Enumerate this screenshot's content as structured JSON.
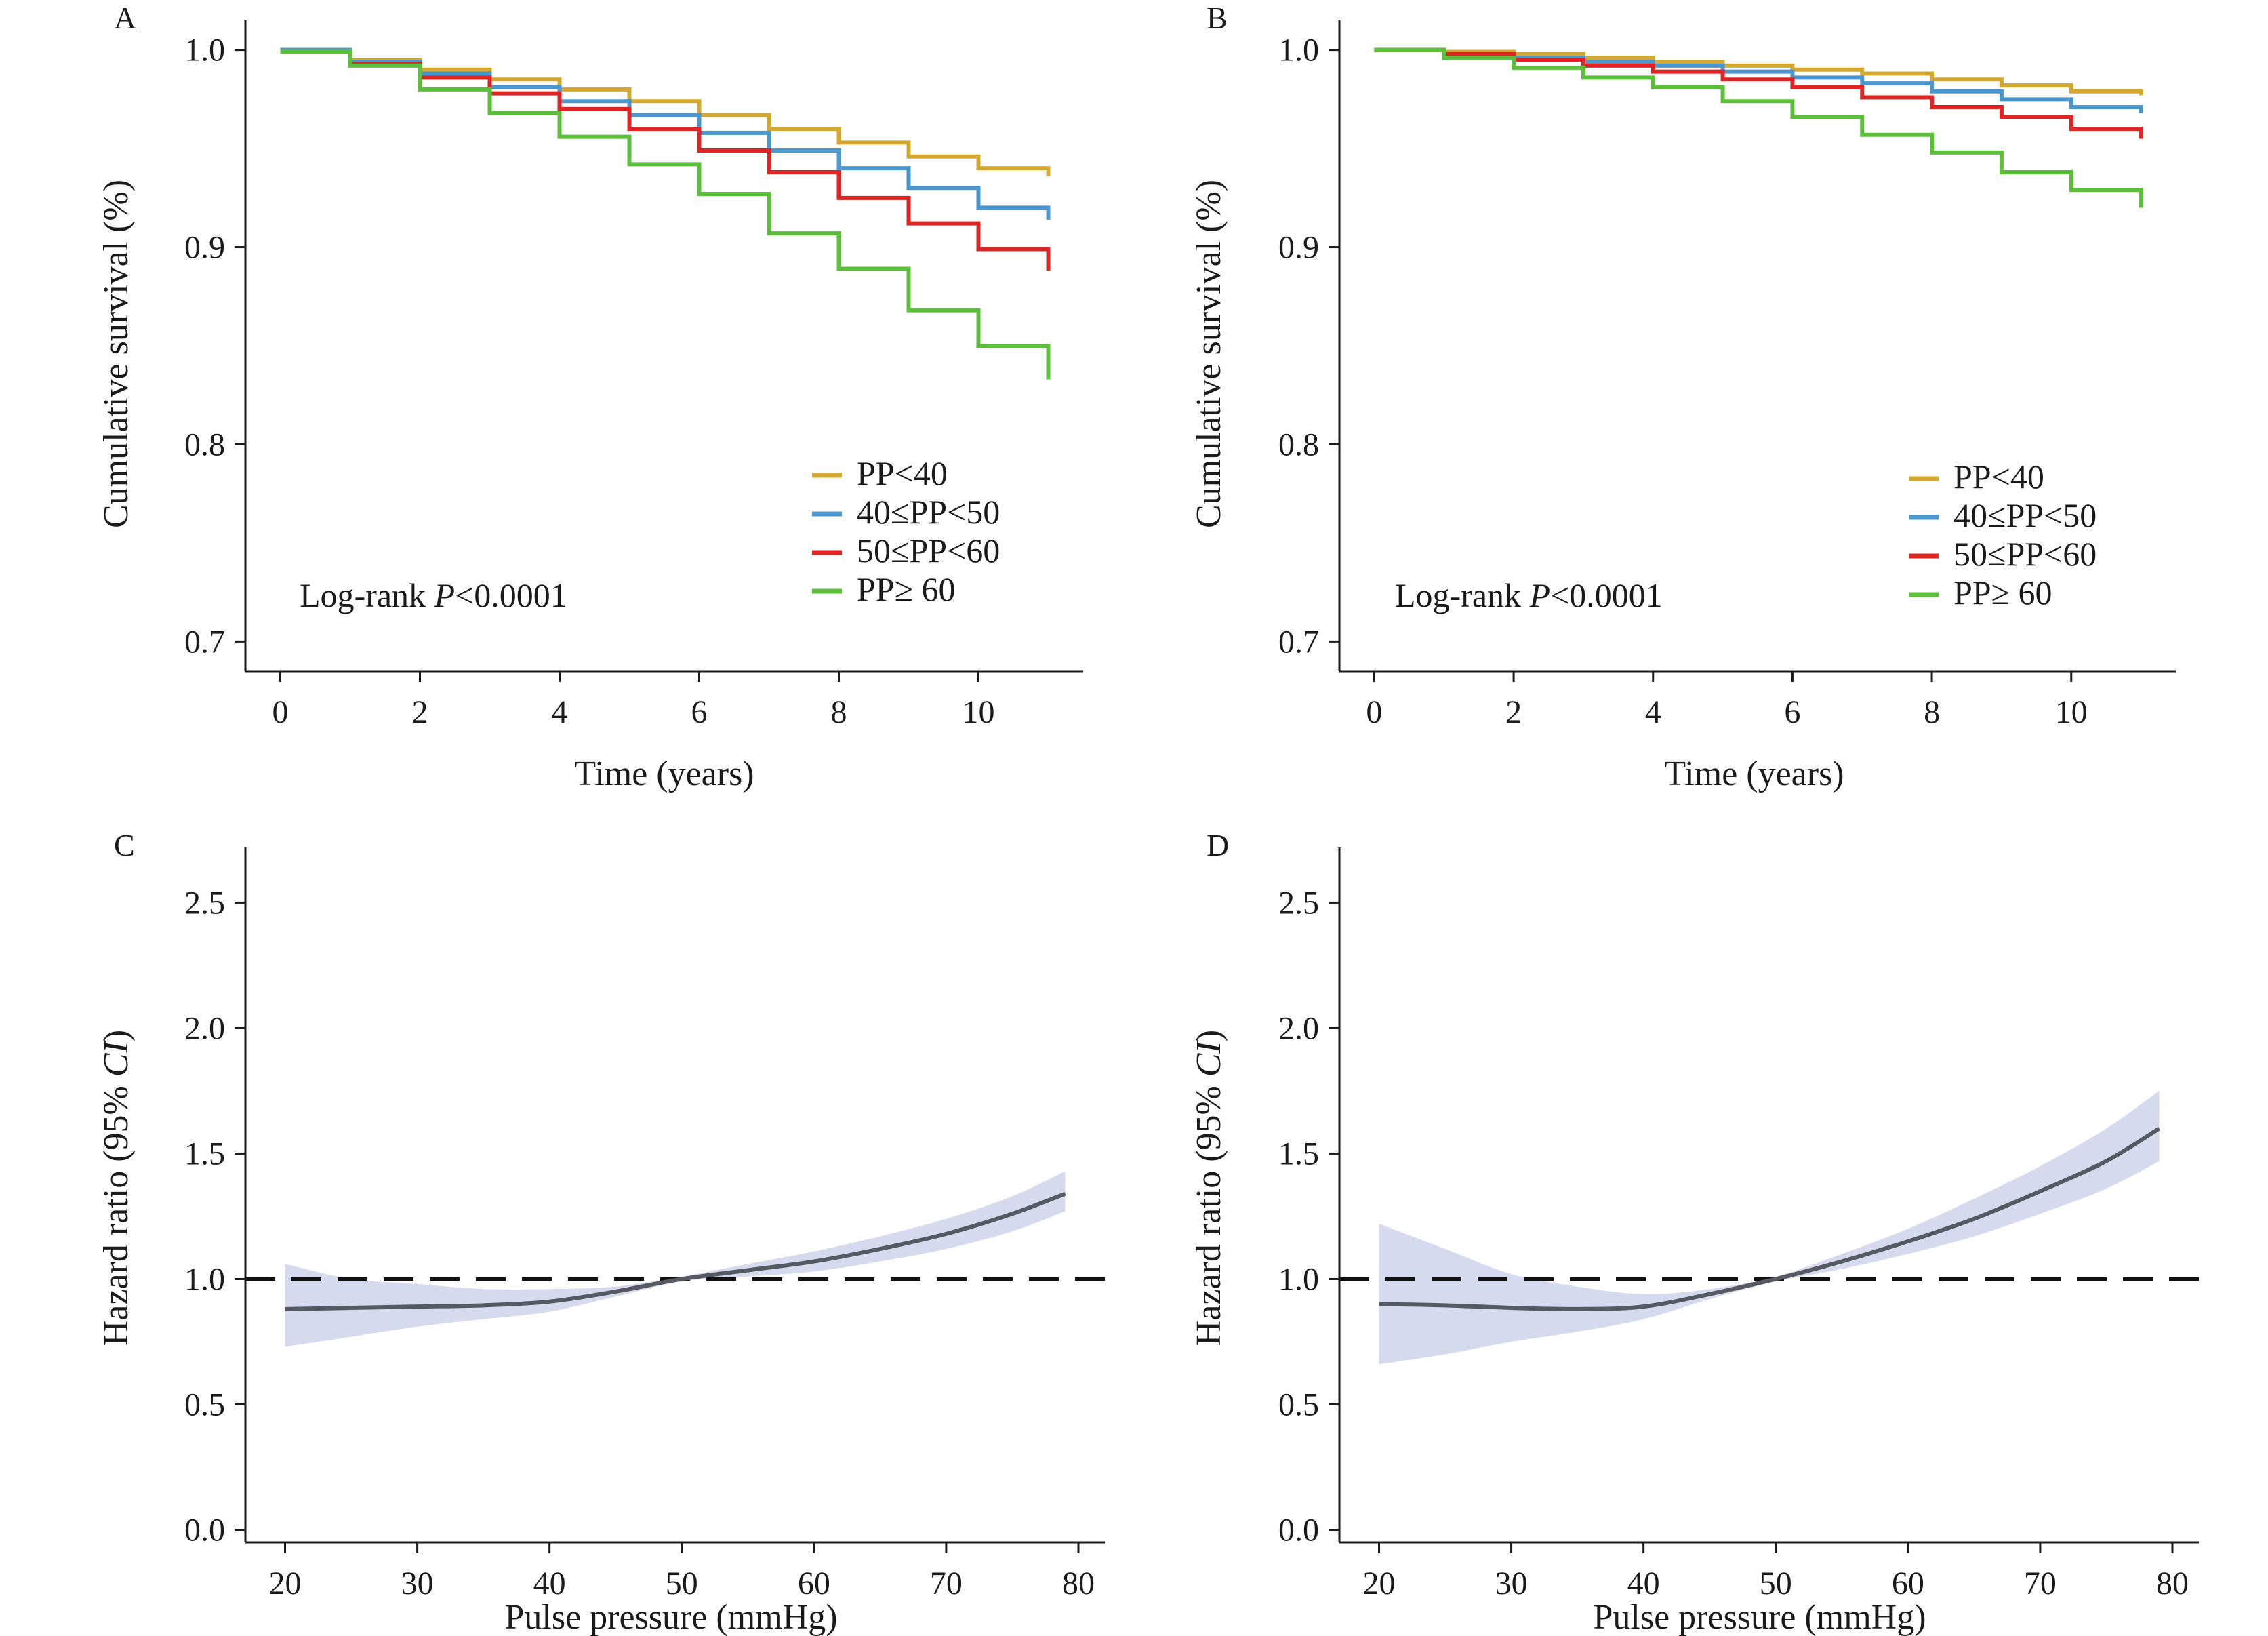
{
  "colors": {
    "pp_lt40": "#D4A82E",
    "pp_40_50": "#4A96CF",
    "pp_50_60": "#E02424",
    "pp_ge60": "#5CBF3A",
    "spline": "#555962",
    "ci_band": "#D5DAEE",
    "reference": "#111111",
    "axis": "#1a1a1a"
  },
  "chart_data": [
    {
      "panel": "A",
      "type": "line",
      "step": true,
      "xlabel": "Time (years)",
      "ylabel": "Cumulative survival (%)",
      "xlim": [
        -0.5,
        11.5
      ],
      "ylim": [
        0.685,
        1.015
      ],
      "xticks": [
        0,
        2,
        4,
        6,
        8,
        10
      ],
      "yticks": [
        0.7,
        0.8,
        0.9,
        1.0
      ],
      "ytick_labels": [
        "0.7",
        "0.8",
        "0.9",
        "1.0"
      ],
      "annotation": {
        "prefix": "Log-rank ",
        "italic": "P",
        "suffix": "<0.0001"
      },
      "legend_position": "bottom-right",
      "series": [
        {
          "name": "PP<40",
          "color_key": "pp_lt40",
          "x": [
            0,
            1,
            2,
            3,
            4,
            5,
            6,
            7,
            8,
            9,
            10,
            11
          ],
          "y": [
            1.0,
            0.995,
            0.99,
            0.985,
            0.98,
            0.974,
            0.967,
            0.96,
            0.953,
            0.946,
            0.94,
            0.936
          ]
        },
        {
          "name": "40≤PP<50",
          "color_key": "pp_40_50",
          "x": [
            0,
            1,
            2,
            3,
            4,
            5,
            6,
            7,
            8,
            9,
            10,
            11
          ],
          "y": [
            1.0,
            0.994,
            0.988,
            0.981,
            0.974,
            0.967,
            0.958,
            0.949,
            0.94,
            0.93,
            0.92,
            0.914
          ]
        },
        {
          "name": "50≤PP<60",
          "color_key": "pp_50_60",
          "x": [
            0,
            1,
            2,
            3,
            4,
            5,
            6,
            7,
            8,
            9,
            10,
            11
          ],
          "y": [
            0.999,
            0.993,
            0.986,
            0.978,
            0.97,
            0.96,
            0.949,
            0.938,
            0.925,
            0.912,
            0.899,
            0.888
          ]
        },
        {
          "name": "PP≥ 60",
          "color_key": "pp_ge60",
          "x": [
            0,
            1,
            2,
            3,
            4,
            5,
            6,
            7,
            8,
            9,
            10,
            11
          ],
          "y": [
            0.999,
            0.992,
            0.98,
            0.968,
            0.956,
            0.942,
            0.927,
            0.907,
            0.889,
            0.868,
            0.85,
            0.833
          ]
        }
      ]
    },
    {
      "panel": "B",
      "type": "line",
      "step": true,
      "xlabel": "Time (years)",
      "ylabel": "Cumulative survival (%)",
      "xlim": [
        -0.5,
        11.5
      ],
      "ylim": [
        0.685,
        1.015
      ],
      "xticks": [
        0,
        2,
        4,
        6,
        8,
        10
      ],
      "yticks": [
        0.7,
        0.8,
        0.9,
        1.0
      ],
      "ytick_labels": [
        "0.7",
        "0.8",
        "0.9",
        "1.0"
      ],
      "annotation": {
        "prefix": "Log-rank ",
        "italic": "P",
        "suffix": "<0.0001"
      },
      "legend_position": "bottom-right",
      "series": [
        {
          "name": "PP<40",
          "color_key": "pp_lt40",
          "x": [
            0,
            1,
            2,
            3,
            4,
            5,
            6,
            7,
            8,
            9,
            10,
            11
          ],
          "y": [
            1.0,
            0.999,
            0.998,
            0.996,
            0.994,
            0.992,
            0.99,
            0.988,
            0.985,
            0.982,
            0.979,
            0.977
          ]
        },
        {
          "name": "40≤PP<50",
          "color_key": "pp_40_50",
          "x": [
            0,
            1,
            2,
            3,
            4,
            5,
            6,
            7,
            8,
            9,
            10,
            11
          ],
          "y": [
            1.0,
            0.998,
            0.996,
            0.994,
            0.992,
            0.989,
            0.986,
            0.983,
            0.979,
            0.975,
            0.971,
            0.968
          ]
        },
        {
          "name": "50≤PP<60",
          "color_key": "pp_50_60",
          "x": [
            0,
            1,
            2,
            3,
            4,
            5,
            6,
            7,
            8,
            9,
            10,
            11
          ],
          "y": [
            1.0,
            0.998,
            0.995,
            0.992,
            0.989,
            0.985,
            0.981,
            0.976,
            0.971,
            0.966,
            0.96,
            0.955
          ]
        },
        {
          "name": "PP≥ 60",
          "color_key": "pp_ge60",
          "x": [
            0,
            1,
            2,
            3,
            4,
            5,
            6,
            7,
            8,
            9,
            10,
            11
          ],
          "y": [
            1.0,
            0.996,
            0.991,
            0.986,
            0.981,
            0.974,
            0.966,
            0.957,
            0.948,
            0.938,
            0.929,
            0.92
          ]
        }
      ]
    },
    {
      "panel": "C",
      "type": "area",
      "xlabel": "Pulse pressure (mmHg)",
      "ylabel": {
        "prefix": "Hazard ratio (95% ",
        "italic": "CI",
        "suffix": ")"
      },
      "xlim": [
        17,
        82
      ],
      "ylim": [
        -0.05,
        2.72
      ],
      "xticks": [
        20,
        30,
        40,
        50,
        60,
        70,
        80
      ],
      "yticks": [
        0.0,
        0.5,
        1.0,
        1.5,
        2.0,
        2.5
      ],
      "ytick_labels": [
        "0.0",
        "0.5",
        "1.0",
        "1.5",
        "2.0",
        "2.5"
      ],
      "reference_line": 1.0,
      "x": [
        20,
        25,
        30,
        35,
        40,
        45,
        50,
        55,
        60,
        65,
        70,
        75,
        79
      ],
      "hr": [
        0.88,
        0.885,
        0.89,
        0.895,
        0.91,
        0.95,
        1.0,
        1.035,
        1.07,
        1.12,
        1.18,
        1.26,
        1.34
      ],
      "ci_lower": [
        0.73,
        0.77,
        0.81,
        0.84,
        0.87,
        0.93,
        0.99,
        1.01,
        1.03,
        1.07,
        1.12,
        1.19,
        1.27
      ],
      "ci_upper": [
        1.06,
        1.0,
        0.98,
        0.96,
        0.96,
        0.97,
        1.01,
        1.06,
        1.11,
        1.17,
        1.24,
        1.33,
        1.43
      ]
    },
    {
      "panel": "D",
      "type": "area",
      "xlabel": "Pulse pressure (mmHg)",
      "ylabel": {
        "prefix": "Hazard ratio (95% ",
        "italic": "CI",
        "suffix": ")"
      },
      "xlim": [
        17,
        82
      ],
      "ylim": [
        -0.05,
        2.72
      ],
      "xticks": [
        20,
        30,
        40,
        50,
        60,
        70,
        80
      ],
      "yticks": [
        0.0,
        0.5,
        1.0,
        1.5,
        2.0,
        2.5
      ],
      "ytick_labels": [
        "0.0",
        "0.5",
        "1.0",
        "1.5",
        "2.0",
        "2.5"
      ],
      "reference_line": 1.0,
      "x": [
        20,
        25,
        30,
        35,
        40,
        45,
        50,
        55,
        60,
        65,
        70,
        75,
        79
      ],
      "hr": [
        0.9,
        0.895,
        0.885,
        0.88,
        0.89,
        0.94,
        1.0,
        1.07,
        1.15,
        1.24,
        1.35,
        1.47,
        1.6
      ],
      "ci_lower": [
        0.66,
        0.7,
        0.75,
        0.79,
        0.84,
        0.92,
        0.99,
        1.04,
        1.1,
        1.17,
        1.26,
        1.36,
        1.47
      ],
      "ci_upper": [
        1.22,
        1.12,
        1.02,
        0.97,
        0.94,
        0.96,
        1.01,
        1.1,
        1.2,
        1.32,
        1.45,
        1.6,
        1.75
      ]
    }
  ]
}
